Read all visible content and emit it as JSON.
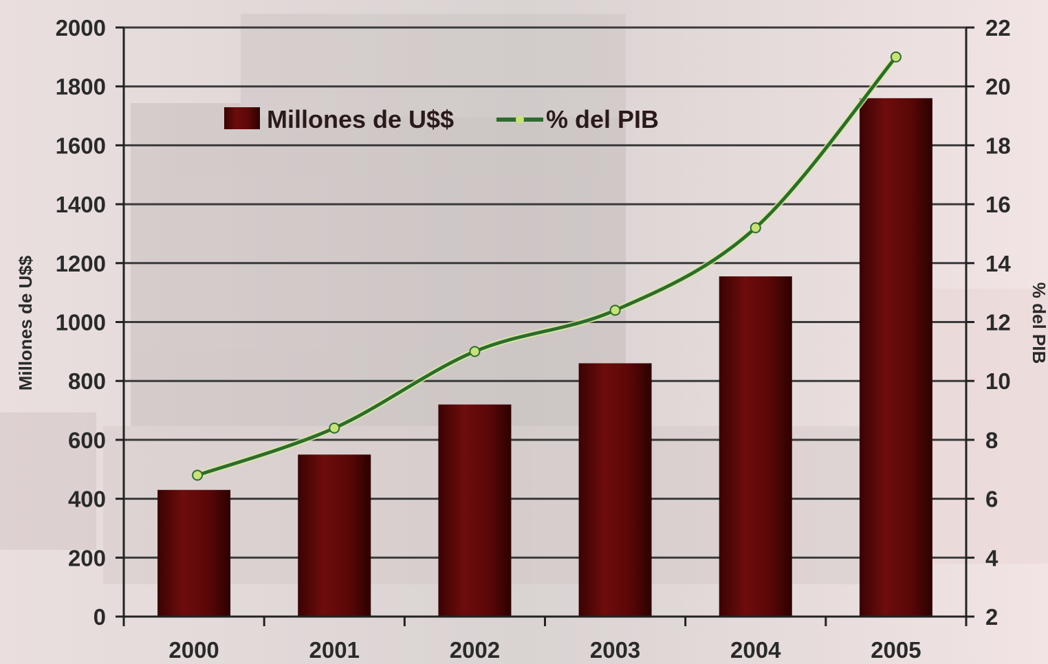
{
  "chart_data": {
    "type": "bar",
    "categories": [
      "2000",
      "2001",
      "2002",
      "2003",
      "2004",
      "2005"
    ],
    "series": [
      {
        "name": "Millones de U$$",
        "type": "bar",
        "axis": "left",
        "color": "#5a0808",
        "values": [
          430,
          550,
          720,
          860,
          1155,
          1760
        ]
      },
      {
        "name": "% del PIB",
        "type": "line",
        "axis": "right",
        "color": "#2e6b2e",
        "marker_color": "#c8e27a",
        "values": [
          6.8,
          8.4,
          11.0,
          12.4,
          15.2,
          21.0
        ]
      }
    ],
    "ylabel": "Millones de U$$",
    "y2label": "% del PIB",
    "ylim": [
      0,
      2000
    ],
    "y2lim": [
      2,
      22
    ],
    "yticks": [
      "0",
      "200",
      "400",
      "600",
      "800",
      "1000",
      "1200",
      "1400",
      "1600",
      "1800",
      "2000"
    ],
    "y2ticks": [
      "2",
      "4",
      "6",
      "8",
      "10",
      "12",
      "14",
      "16",
      "18",
      "20",
      "22"
    ],
    "grid": true,
    "legend_position": "top-left"
  }
}
